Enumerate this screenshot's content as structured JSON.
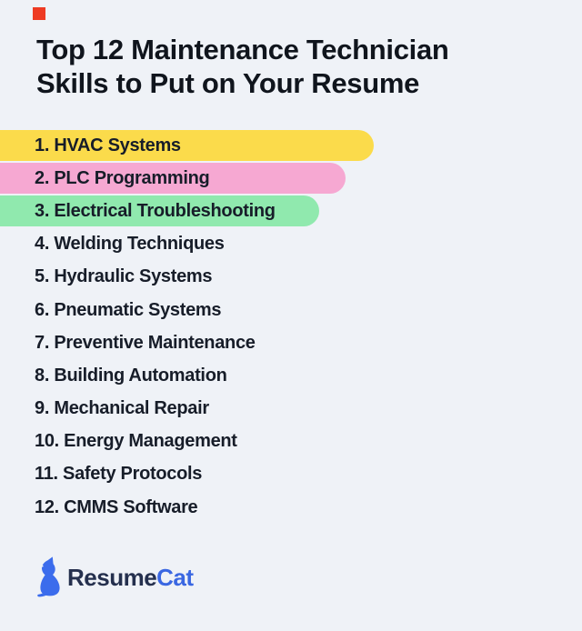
{
  "page": {
    "background": "#EFF2F7"
  },
  "corner_accent": {
    "color": "#EE3B23"
  },
  "title": {
    "line1": "Top 12 Maintenance Technician",
    "line2": "Skills to Put on Your Resume",
    "color": "#10151D"
  },
  "skills": {
    "text_color": "#171D29",
    "items": [
      {
        "label": "1. HVAC Systems",
        "highlight_color": "#FBDB4B",
        "highlight_width": 411
      },
      {
        "label": "2. PLC Programming",
        "highlight_color": "#F6A8D2",
        "highlight_width": 380
      },
      {
        "label": "3. Electrical Troubleshooting",
        "highlight_color": "#90E9AE",
        "highlight_width": 351
      },
      {
        "label": "4. Welding Techniques"
      },
      {
        "label": "5. Hydraulic Systems"
      },
      {
        "label": "6. Pneumatic Systems"
      },
      {
        "label": "7. Preventive Maintenance"
      },
      {
        "label": "8. Building Automation"
      },
      {
        "label": "9. Mechanical Repair"
      },
      {
        "label": "10. Energy Management"
      },
      {
        "label": "11. Safety Protocols"
      },
      {
        "label": "12. CMMS Software"
      }
    ]
  },
  "footer": {
    "brand_part1": "Resume",
    "brand_part2": "Cat",
    "part1_color": "#25304E",
    "part2_color": "#3A67E2",
    "cat_icon_color": "#3B6CEC"
  }
}
